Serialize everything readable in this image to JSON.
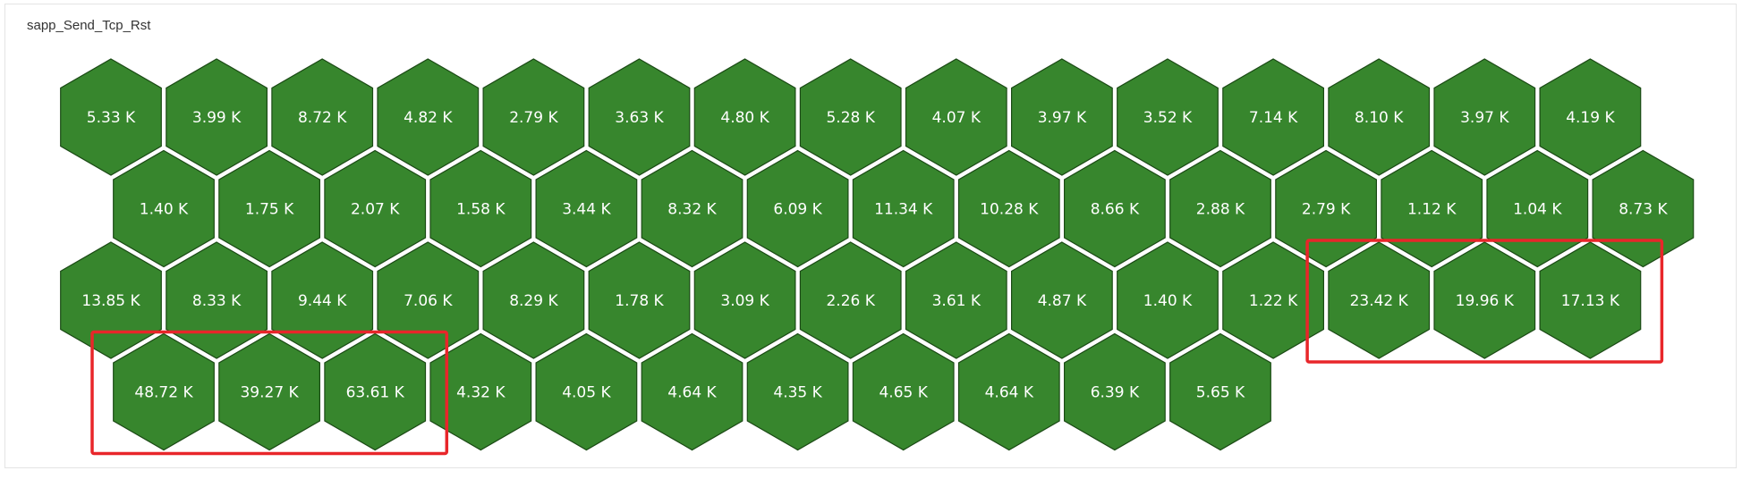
{
  "panel": {
    "title": "sapp_Send_Tcp_Rst"
  },
  "colors": {
    "hex_fill": "#37862d",
    "hex_stroke": "#1b4a15",
    "highlight": "#e8262a"
  },
  "rows": [
    [
      "5.33 K",
      "3.99 K",
      "8.72 K",
      "4.82 K",
      "2.79 K",
      "3.63 K",
      "4.80 K",
      "5.28 K",
      "4.07 K",
      "3.97 K",
      "3.52 K",
      "7.14 K",
      "8.10 K",
      "3.97 K",
      "4.19 K"
    ],
    [
      "1.40 K",
      "1.75 K",
      "2.07 K",
      "1.58 K",
      "3.44 K",
      "8.32 K",
      "6.09 K",
      "11.34 K",
      "10.28 K",
      "8.66 K",
      "2.88 K",
      "2.79 K",
      "1.12 K",
      "1.04 K",
      "8.73 K"
    ],
    [
      "13.85 K",
      "8.33 K",
      "9.44 K",
      "7.06 K",
      "8.29 K",
      "1.78 K",
      "3.09 K",
      "2.26 K",
      "3.61 K",
      "4.87 K",
      "1.40 K",
      "1.22 K",
      "23.42 K",
      "19.96 K",
      "17.13 K"
    ],
    [
      "48.72 K",
      "39.27 K",
      "63.61 K",
      "4.32 K",
      "4.05 K",
      "4.64 K",
      "4.35 K",
      "4.65 K",
      "4.64 K",
      "6.39 K",
      "5.65 K"
    ]
  ],
  "highlights": [
    {
      "row": 2,
      "from": 12,
      "to": 14
    },
    {
      "row": 3,
      "from": 0,
      "to": 2
    }
  ]
}
